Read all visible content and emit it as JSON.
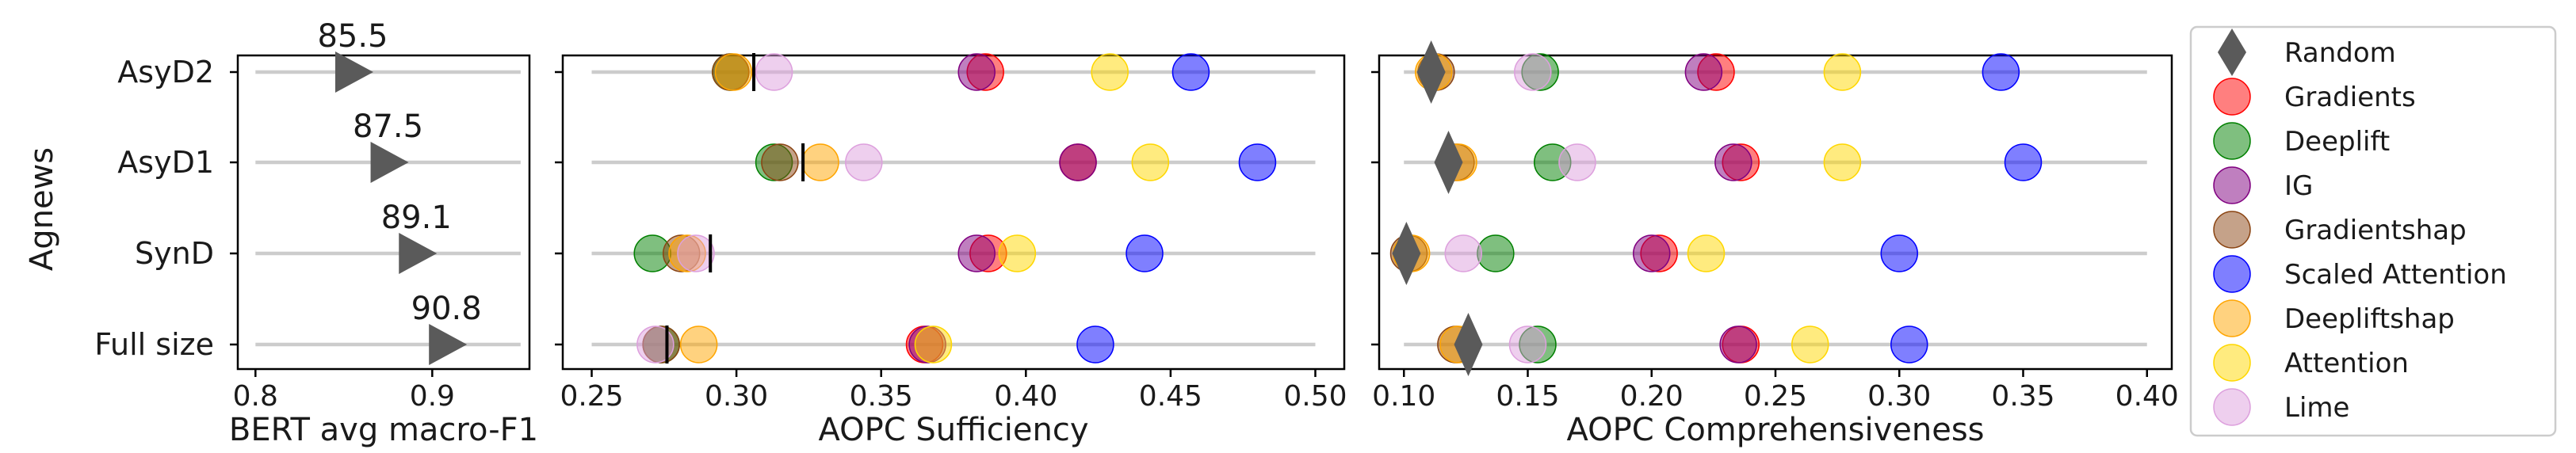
{
  "chart_data": {
    "type": "scatter",
    "ylabel": "Agnews",
    "rows": [
      "AsyD2",
      "AsyD1",
      "SynD",
      "Full size"
    ],
    "legend": {
      "placement": "right-outside",
      "entries": [
        {
          "name": "Random",
          "color": "#5a5a5a",
          "marker": "diamond"
        },
        {
          "name": "Gradients",
          "color": "#ff0000",
          "marker": "circle"
        },
        {
          "name": "Deeplift",
          "color": "#008000",
          "marker": "circle"
        },
        {
          "name": "IG",
          "color": "#800080",
          "marker": "circle"
        },
        {
          "name": "Gradientshap",
          "color": "#8b4513",
          "marker": "circle"
        },
        {
          "name": "Scaled Attention",
          "color": "#0000ff",
          "marker": "circle"
        },
        {
          "name": "Deepliftshap",
          "color": "#ffa500",
          "marker": "circle"
        },
        {
          "name": "Attention",
          "color": "#ffd700",
          "marker": "circle"
        },
        {
          "name": "Lime",
          "color": "#dda0dd",
          "marker": "circle"
        }
      ]
    },
    "panels": [
      {
        "name": "bert",
        "xlabel": "BERT avg macro-F1",
        "xlim": [
          0.79,
          0.955
        ],
        "xticks": [
          0.8,
          0.9
        ],
        "xtick_labels": [
          "0.8",
          "0.9"
        ],
        "points": [
          {
            "row": "AsyD2",
            "x": 0.855,
            "label": "85.5"
          },
          {
            "row": "AsyD1",
            "x": 0.875,
            "label": "87.5"
          },
          {
            "row": "SynD",
            "x": 0.891,
            "label": "89.1"
          },
          {
            "row": "Full size",
            "x": 0.908,
            "label": "90.8"
          }
        ]
      },
      {
        "name": "sufficiency",
        "xlabel": "AOPC Sufficiency",
        "xlim": [
          0.24,
          0.51
        ],
        "xticks": [
          0.25,
          0.3,
          0.35,
          0.4,
          0.45,
          0.5
        ],
        "xtick_labels": [
          "0.25",
          "0.30",
          "0.35",
          "0.40",
          "0.45",
          "0.50"
        ],
        "random": {
          "AsyD2": 0.306,
          "AsyD1": 0.323,
          "SynD": 0.291,
          "Full size": 0.276
        },
        "series": [
          {
            "name": "Gradients",
            "values": [
              0.386,
              0.418,
              0.387,
              0.365
            ]
          },
          {
            "name": "Deeplift",
            "values": [
              0.298,
              0.313,
              0.271,
              0.274
            ]
          },
          {
            "name": "IG",
            "values": [
              0.383,
              0.418,
              0.383,
              0.366
            ]
          },
          {
            "name": "Gradientshap",
            "values": [
              0.298,
              0.315,
              0.281,
              0.274
            ]
          },
          {
            "name": "Scaled Attention",
            "values": [
              0.457,
              0.48,
              0.441,
              0.424
            ]
          },
          {
            "name": "Deepliftshap",
            "values": [
              0.299,
              0.329,
              0.283,
              0.287
            ]
          },
          {
            "name": "Attention",
            "values": [
              0.429,
              0.443,
              0.397,
              0.368
            ]
          },
          {
            "name": "Lime",
            "values": [
              0.313,
              0.344,
              0.286,
              0.272
            ]
          }
        ]
      },
      {
        "name": "comprehensiveness",
        "xlabel": "AOPC Comprehensiveness",
        "xlim": [
          0.09,
          0.41
        ],
        "xticks": [
          0.1,
          0.15,
          0.2,
          0.25,
          0.3,
          0.35,
          0.4
        ],
        "xtick_labels": [
          "0.10",
          "0.15",
          "0.20",
          "0.25",
          "0.30",
          "0.35",
          "0.40"
        ],
        "random": {
          "AsyD2": 0.111,
          "AsyD1": 0.118,
          "SynD": 0.101,
          "Full size": 0.126
        },
        "series": [
          {
            "name": "Gradients",
            "values": [
              0.226,
              0.236,
              0.203,
              0.236
            ]
          },
          {
            "name": "Deeplift",
            "values": [
              0.155,
              0.16,
              0.137,
              0.154
            ]
          },
          {
            "name": "IG",
            "values": [
              0.221,
              0.233,
              0.2,
              0.235
            ]
          },
          {
            "name": "Gradientshap",
            "values": [
              0.113,
              0.121,
              0.102,
              0.121
            ]
          },
          {
            "name": "Scaled Attention",
            "values": [
              0.341,
              0.35,
              0.3,
              0.304
            ]
          },
          {
            "name": "Deepliftshap",
            "values": [
              0.112,
              0.122,
              0.103,
              0.122
            ]
          },
          {
            "name": "Attention",
            "values": [
              0.277,
              0.277,
              0.222,
              0.264
            ]
          },
          {
            "name": "Lime",
            "values": [
              0.152,
              0.17,
              0.124,
              0.15
            ]
          }
        ]
      }
    ]
  }
}
